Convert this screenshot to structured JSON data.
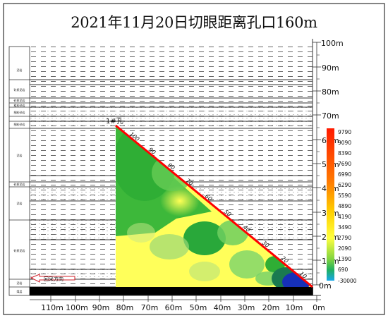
{
  "title": "2021年11月20日切眼距离孔口160m",
  "depth_axis": {
    "labels": [
      "100m",
      "90m",
      "80m",
      "70m",
      "60m",
      "50m",
      "40m",
      "30m",
      "20m",
      "10m",
      "0m"
    ]
  },
  "distance_axis": {
    "labels": [
      "110m",
      "100m",
      "90m",
      "80m",
      "70m",
      "60m",
      "50m",
      "40m",
      "30m",
      "20m",
      "10m",
      "0m"
    ]
  },
  "strata_labels": [
    "泥岩",
    "砂质泥岩",
    "砂质泥岩",
    "粗粒砂岩",
    "细粒砂岩",
    "细粒砂岩",
    "泥岩",
    "砂质泥岩",
    "泥岩",
    "砂质泥岩",
    "泥岩",
    "煤层"
  ],
  "borehole": {
    "label": "1#孔",
    "marks": [
      "100",
      "90",
      "80",
      "70",
      "60",
      "50",
      "40",
      "30",
      "20",
      "10"
    ]
  },
  "arrow_label": "回采方向",
  "colorbar": {
    "labels": [
      "9790",
      "9090",
      "8390",
      "7690",
      "6990",
      "6290",
      "5590",
      "4890",
      "4190",
      "3490",
      "2790",
      "2090",
      "1390",
      "690",
      "-30000"
    ]
  },
  "colors": {
    "frame": "#333333",
    "borehole": "#ff0000",
    "coal": "#000000"
  }
}
